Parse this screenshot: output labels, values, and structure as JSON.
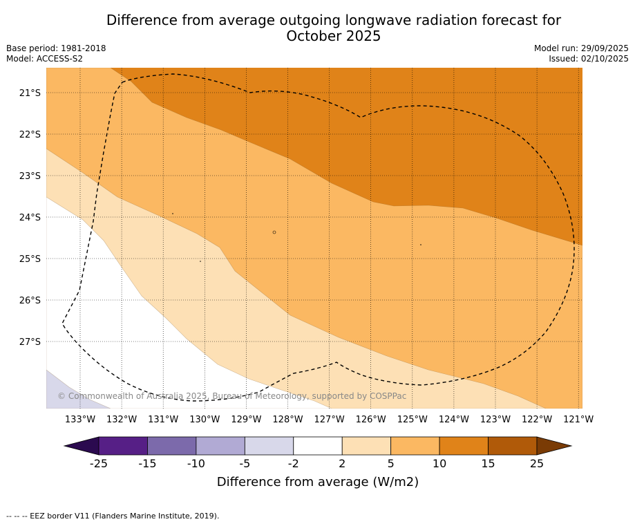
{
  "header": {
    "title_line1": "Difference from average outgoing longwave radiation forecast for",
    "title_line2": "October 2025",
    "base_period": "Base period: 1981-2018",
    "model": "Model: ACCESS-S2",
    "model_run": "Model run: 29/09/2025",
    "issued": "Issued: 02/10/2025"
  },
  "map": {
    "lat_labels": [
      "21°S",
      "22°S",
      "23°S",
      "24°S",
      "25°S",
      "26°S",
      "27°S"
    ],
    "lon_labels": [
      "133°W",
      "132°W",
      "131°W",
      "130°W",
      "129°W",
      "128°W",
      "127°W",
      "126°W",
      "125°W",
      "124°W",
      "123°W",
      "122°W",
      "121°W"
    ],
    "copyright": "© Commonwealth of Australia 2025, Bureau of Meteorology, supported by COSPPac",
    "region_colors": {
      "lt_minus2": "#d8d8ea",
      "minus2_2": "#ffffff",
      "2_5": "#fde0b5",
      "5_10": "#fbb862",
      "10_15": "#e08319"
    }
  },
  "colorbar": {
    "title": "Difference from average (W/m2)",
    "tick_labels": [
      "-25",
      "-15",
      "-10",
      "-5",
      "-2",
      "2",
      "5",
      "10",
      "15",
      "25"
    ],
    "colors": [
      "#561f86",
      "#7c6aab",
      "#b1aad4",
      "#d8d8ea",
      "#ffffff",
      "#fde0b5",
      "#fbb862",
      "#e08319",
      "#b05a09"
    ],
    "under_color": "#2b0a4f",
    "over_color": "#7a3b05"
  },
  "footnote": "-- -- -- EEZ border V11 (Flanders Marine Institute, 2019)."
}
